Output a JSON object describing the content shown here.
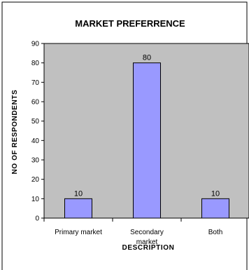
{
  "chart_data": {
    "type": "bar",
    "title": "MARKET PREFERRENCE",
    "xlabel": "DESCRIPTION",
    "ylabel": "NO OF RESPONDENTS",
    "categories": [
      "Primary market",
      "Secondary market",
      "Both"
    ],
    "category_lines": [
      [
        "Primary market"
      ],
      [
        "Secondary",
        "market"
      ],
      [
        "Both"
      ]
    ],
    "values": [
      10,
      80,
      10
    ],
    "data_labels": [
      "10",
      "80",
      "10"
    ],
    "ylim": [
      0,
      90
    ],
    "yticks": [
      "0",
      "10",
      "20",
      "30",
      "40",
      "50",
      "60",
      "70",
      "80",
      "90"
    ],
    "grid": false,
    "legend": "none",
    "colors": {
      "bar_fill": "#9999ff",
      "plot_background": "#c0c0c0",
      "outline": "#000000",
      "page_background": "#ffffff"
    }
  }
}
